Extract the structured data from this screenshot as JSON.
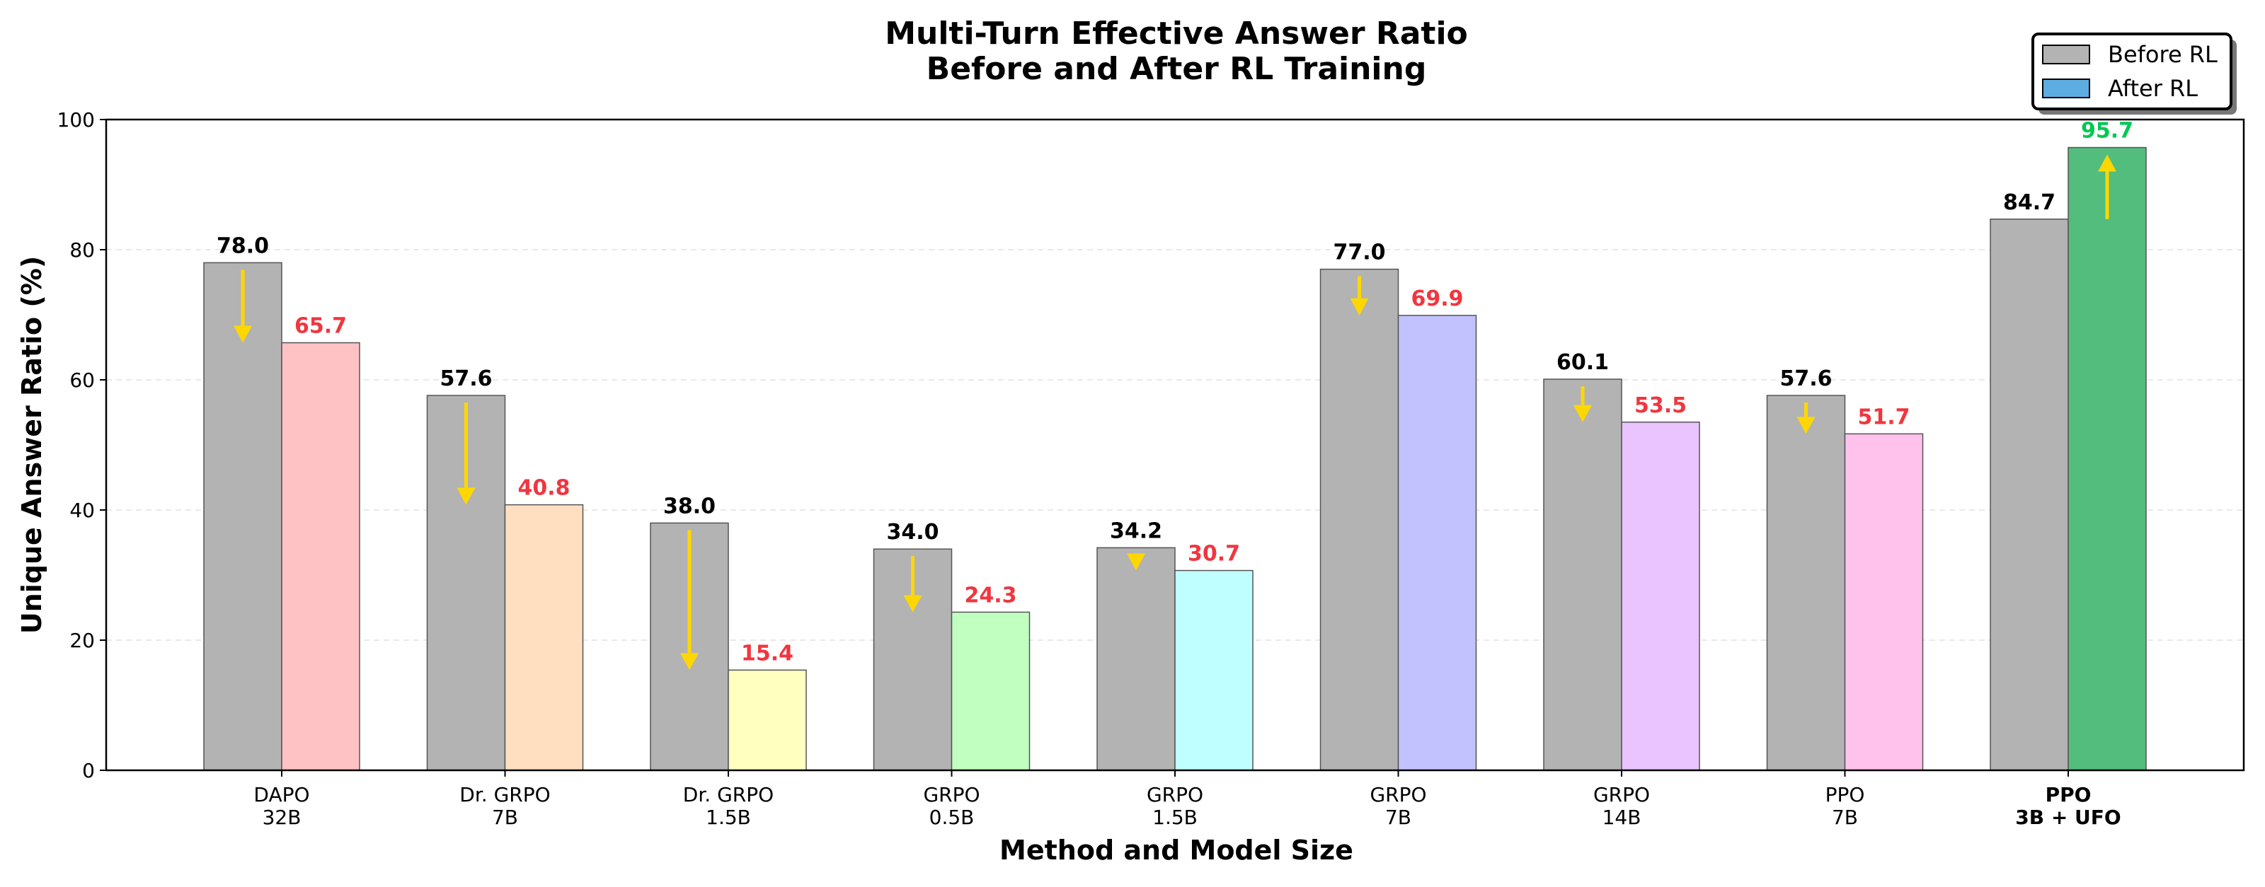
{
  "chart_data": {
    "type": "bar",
    "title_line1": "Multi-Turn Effective Answer Ratio",
    "title_line2": "Before and After RL Training",
    "xlabel": "Method and Model Size",
    "ylabel": "Unique Answer Ratio (%)",
    "ylim": [
      0,
      100
    ],
    "yticks": [
      "0",
      "20",
      "40",
      "60",
      "80",
      "100"
    ],
    "grid": "horizontal dashed",
    "legend_position": "top-right",
    "categories": [
      {
        "line1": "DAPO",
        "line2": "32B",
        "bold": false
      },
      {
        "line1": "Dr. GRPO",
        "line2": "7B",
        "bold": false
      },
      {
        "line1": "Dr. GRPO",
        "line2": "1.5B",
        "bold": false
      },
      {
        "line1": "GRPO",
        "line2": "0.5B",
        "bold": false
      },
      {
        "line1": "GRPO",
        "line2": "1.5B",
        "bold": false
      },
      {
        "line1": "GRPO",
        "line2": "7B",
        "bold": false
      },
      {
        "line1": "GRPO",
        "line2": "14B",
        "bold": false
      },
      {
        "line1": "PPO",
        "line2": "7B",
        "bold": false
      },
      {
        "line1": "PPO",
        "line2": "3B + UFO",
        "bold": true
      }
    ],
    "series": [
      {
        "name": "Before RL",
        "legend_color": "#b3b3b3",
        "values": [
          78.0,
          57.6,
          38.0,
          34.0,
          34.2,
          77.0,
          60.1,
          57.6,
          84.7
        ],
        "labels": [
          "78.0",
          "57.6",
          "38.0",
          "34.0",
          "34.2",
          "77.0",
          "60.1",
          "57.6",
          "84.7"
        ],
        "label_color": "#000000"
      },
      {
        "name": "After RL",
        "legend_color": "#5dade2",
        "values": [
          65.7,
          40.8,
          15.4,
          24.3,
          30.7,
          69.9,
          53.5,
          51.7,
          95.7
        ],
        "labels": [
          "65.7",
          "40.8",
          "15.4",
          "24.3",
          "30.7",
          "69.9",
          "53.5",
          "51.7",
          "95.7"
        ],
        "bar_colors": [
          "#ffc2c4",
          "#ffdfbf",
          "#ffffc0",
          "#c0ffc0",
          "#c0ffff",
          "#c2c2ff",
          "#e9c4ff",
          "#ffc2ec",
          "#52bd7d"
        ],
        "label_colors": [
          "#f0363f",
          "#f0363f",
          "#f0363f",
          "#f0363f",
          "#f0363f",
          "#f0363f",
          "#f0363f",
          "#f0363f",
          "#00c853"
        ]
      }
    ],
    "arrow_color": "#ffd700"
  }
}
